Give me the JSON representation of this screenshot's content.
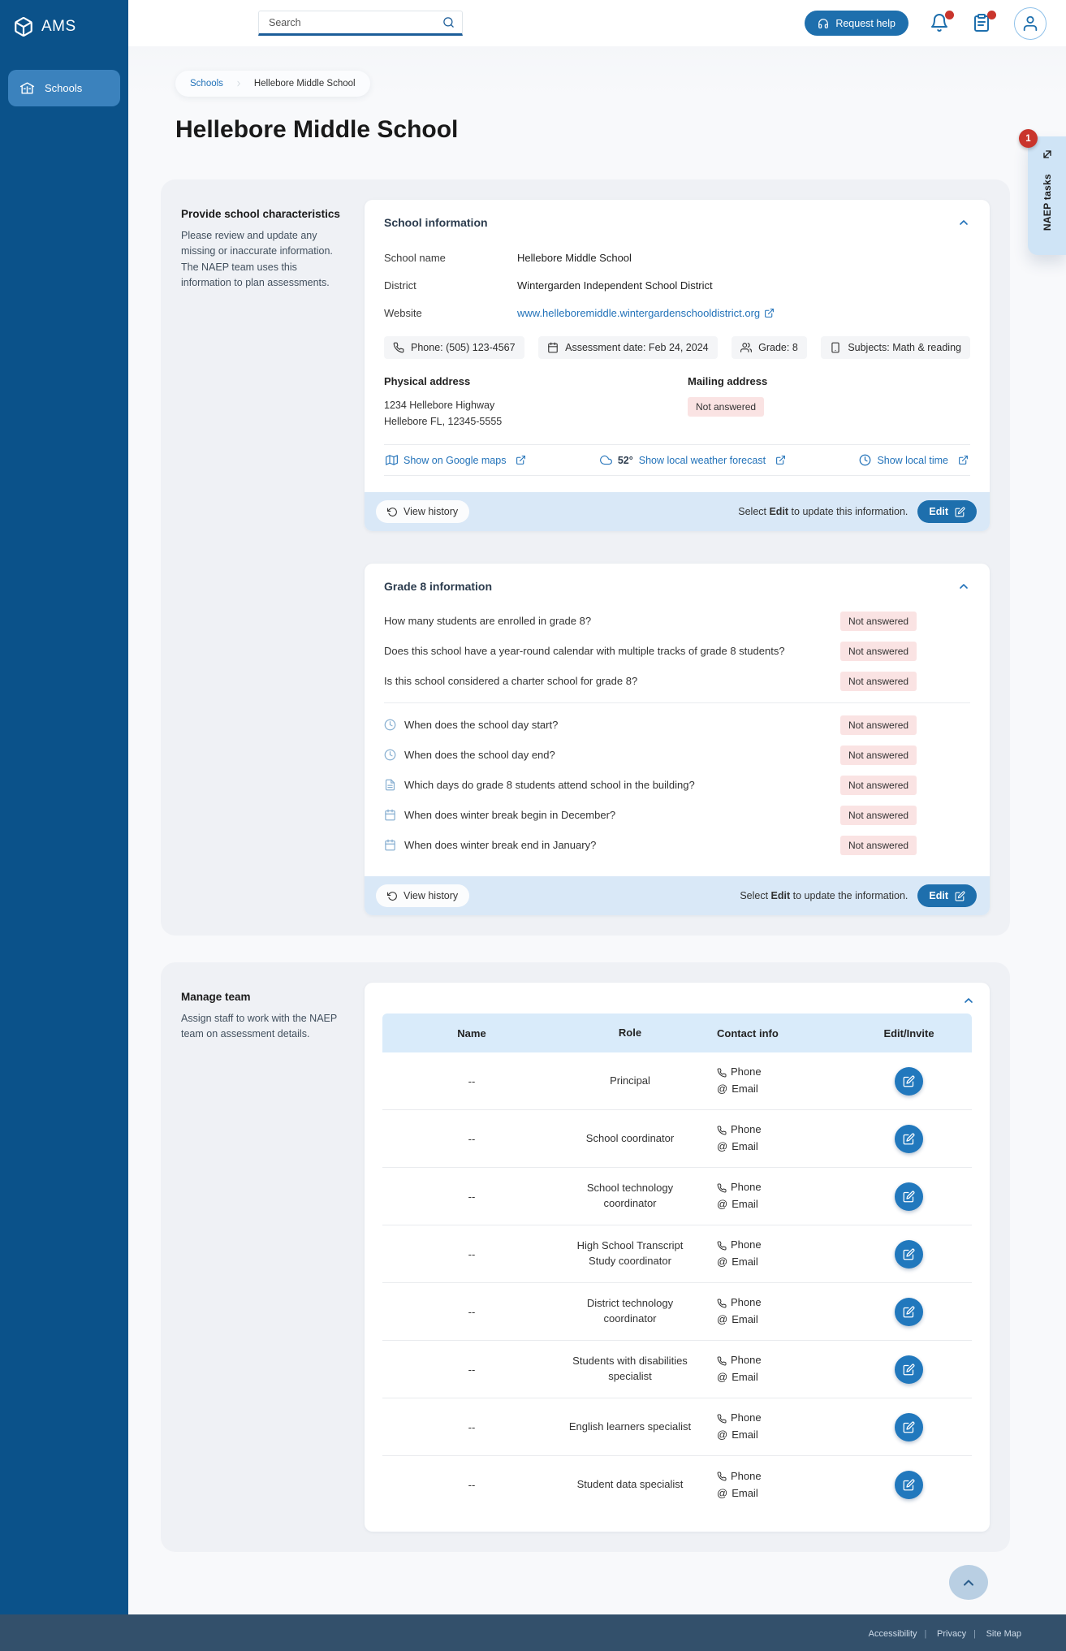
{
  "brand": {
    "name": "AMS"
  },
  "topbar": {
    "search_placeholder": "Search",
    "request_help_label": "Request help"
  },
  "sidebar": {
    "schools_label": "Schools"
  },
  "breadcrumb": {
    "level1": "Schools",
    "level2": "Hellebore Middle School"
  },
  "page": {
    "title": "Hellebore Middle School"
  },
  "naep_tab": {
    "label": "NAEP tasks",
    "badge_count": "1"
  },
  "characteristics": {
    "heading": "Provide school characteristics",
    "description": "Please review and update any missing or inaccurate information. The NAEP team uses this information to plan assessments."
  },
  "school_info": {
    "title": "School information",
    "school_name": {
      "label": "School name",
      "value": "Hellebore Middle School"
    },
    "district": {
      "label": "District",
      "value": "Wintergarden Independent School District"
    },
    "website": {
      "label": "Website",
      "value": "www.helleboremiddle.wintergardenschooldistrict.org"
    },
    "chips": {
      "phone": "Phone: (505) 123-4567",
      "assessment_date": "Assessment date: Feb 24, 2024",
      "grade": "Grade: 8",
      "subjects": "Subjects: Math & reading"
    },
    "physical_address": {
      "label": "Physical address",
      "line1": "1234 Hellebore Highway",
      "line2": "Hellebore FL, 12345-5555"
    },
    "mailing_address": {
      "label": "Mailing address",
      "status": "Not answered"
    },
    "links": {
      "maps": "Show on Google maps",
      "weather_temp": "52°",
      "weather": "Show local weather forecast",
      "local_time": "Show local time"
    },
    "footer": {
      "view_history": "View history",
      "hint_prefix": "Select ",
      "hint_bold": "Edit",
      "hint_suffix": " to update this information.",
      "edit_label": "Edit"
    }
  },
  "grade8_info": {
    "title": "Grade 8 information",
    "not_answered_label": "Not answered",
    "questions": [
      {
        "text": "How many students are enrolled in grade 8?"
      },
      {
        "text": "Does this school have a year-round calendar with multiple tracks of grade 8 students?"
      },
      {
        "text": "Is this school considered a charter school for grade 8?"
      }
    ],
    "icon_questions": [
      {
        "icon": "clock-icon",
        "text": "When does the school day start?"
      },
      {
        "icon": "clock-icon",
        "text": "When does the school day end?"
      },
      {
        "icon": "form-icon",
        "text": "Which days do grade 8 students attend school in the building?"
      },
      {
        "icon": "calendar-icon",
        "text": "When does winter break begin in December?"
      },
      {
        "icon": "calendar-icon",
        "text": "When does winter break end in January?"
      }
    ],
    "footer": {
      "view_history": "View history",
      "hint_prefix": "Select ",
      "hint_bold": "Edit",
      "hint_suffix": " to update the information.",
      "edit_label": "Edit"
    }
  },
  "manage_team": {
    "heading": "Manage team",
    "description": "Assign staff to work with the NAEP team on assessment details.",
    "columns": {
      "name": "Name",
      "role": "Role",
      "contact": "Contact info",
      "edit": "Edit/Invite"
    },
    "contact_phone_label": "Phone",
    "contact_email_label": "Email",
    "rows": [
      {
        "name": "--",
        "role": "Principal"
      },
      {
        "name": "--",
        "role": "School coordinator"
      },
      {
        "name": "--",
        "role": "School technology coordinator"
      },
      {
        "name": "--",
        "role": "High School Transcript Study coordinator"
      },
      {
        "name": "--",
        "role": "District technology coordinator"
      },
      {
        "name": "--",
        "role": "Students with disabilities specialist"
      },
      {
        "name": "--",
        "role": "English learners specialist"
      },
      {
        "name": "--",
        "role": "Student data specialist"
      }
    ]
  },
  "site_footer": {
    "separator": "|",
    "links": [
      "Accessibility",
      "Privacy",
      "Site Map"
    ]
  },
  "colors": {
    "sidebar": "#0b528a",
    "accent": "#1e6fad",
    "link": "#2272b9",
    "footer": "#33506b",
    "badge_red": "#c9352c",
    "not_answered_bg": "#fae3e3",
    "card_footer_bg": "#d9e8f7",
    "table_header_bg": "#d9ebfa",
    "naep_tab_bg": "#cfe4f6"
  }
}
